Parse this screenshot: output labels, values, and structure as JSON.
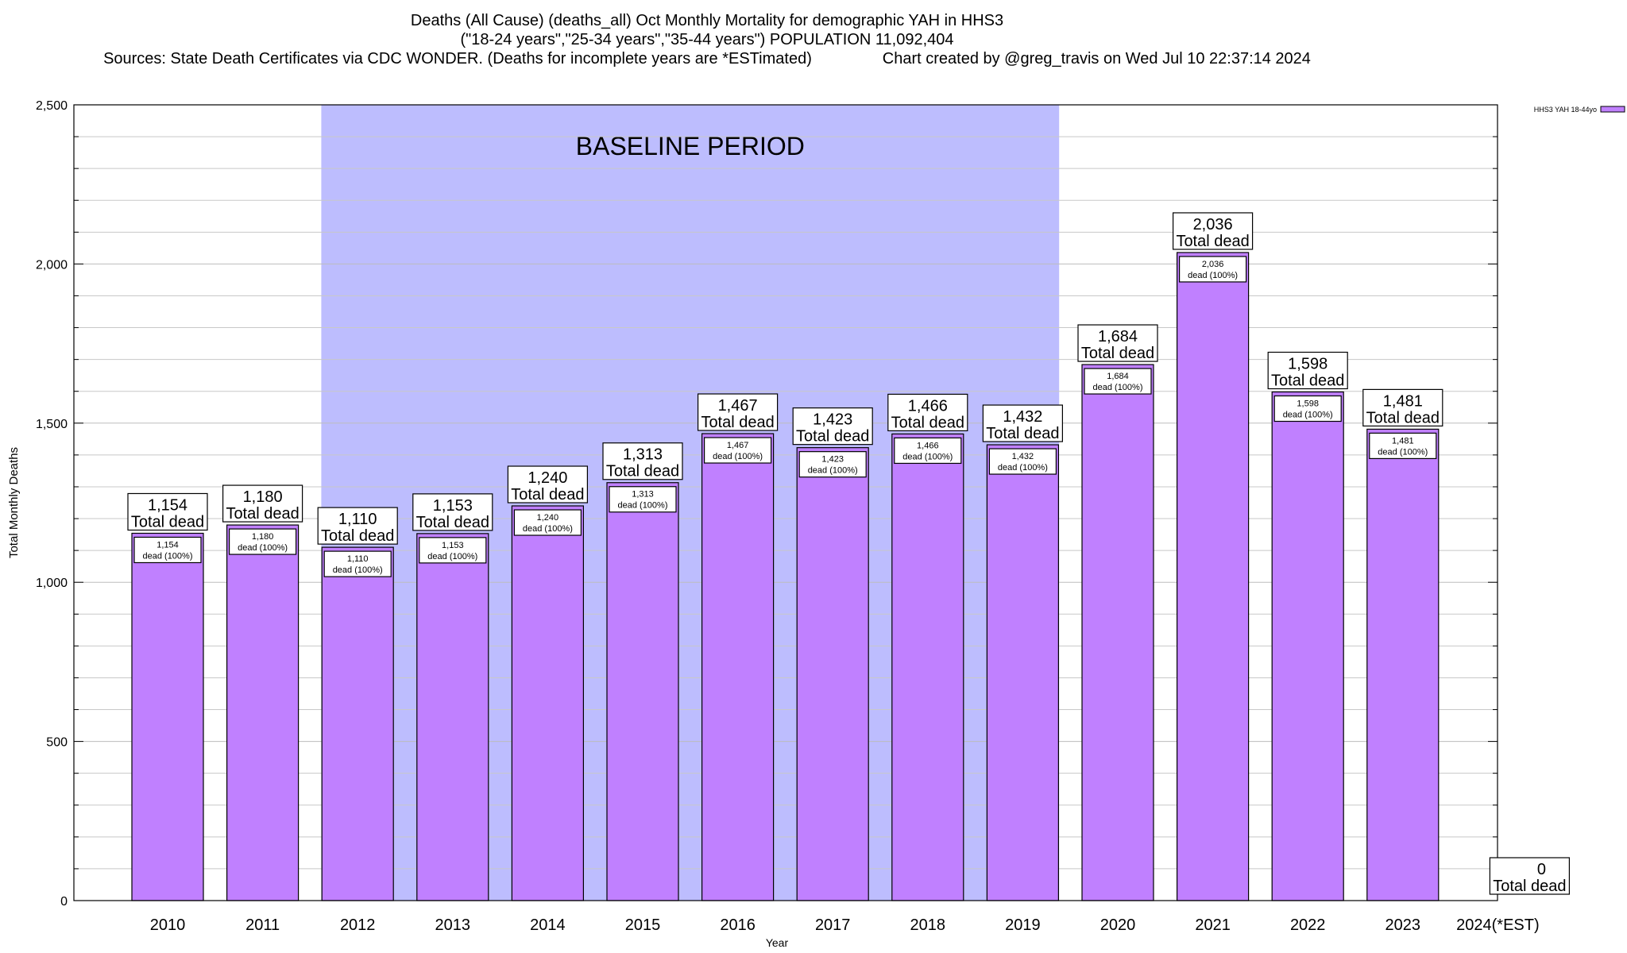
{
  "chart_data": {
    "type": "bar",
    "title": "Deaths (All Cause) (deaths_all) Oct Monthly Mortality for demographic YAH in HHS3",
    "subtitle": "(\"18-24 years\",\"25-34 years\",\"35-44 years\") POPULATION 11,092,404",
    "sources": "Sources: State Death Certificates via CDC WONDER. (Deaths for incomplete years are *ESTimated)",
    "credit": "Chart created by @greg_travis on Wed Jul 10 22:37:14 2024",
    "xlabel": "Year",
    "ylabel": "Total Monthly Deaths",
    "ylim": [
      0,
      2500
    ],
    "yticks": [
      0,
      500,
      1000,
      1500,
      2000,
      2500
    ],
    "ytick_labels": [
      "0",
      "500",
      "1,000",
      "1,500",
      "2,000",
      "2,500"
    ],
    "minor_step": 100,
    "categories": [
      "2010",
      "2011",
      "2012",
      "2013",
      "2014",
      "2015",
      "2016",
      "2017",
      "2018",
      "2019",
      "2020",
      "2021",
      "2022",
      "2023",
      "2024(*EST)"
    ],
    "series": [
      {
        "name": "HHS3 YAH 18-44yo",
        "color": "#c080ff",
        "values": [
          1154,
          1180,
          1110,
          1153,
          1240,
          1313,
          1467,
          1423,
          1466,
          1432,
          1684,
          2036,
          1598,
          1481,
          0
        ],
        "value_labels": [
          "1,154",
          "1,180",
          "1,110",
          "1,153",
          "1,240",
          "1,313",
          "1,467",
          "1,423",
          "1,466",
          "1,432",
          "1,684",
          "2,036",
          "1,598",
          "1,481",
          "0"
        ]
      }
    ],
    "top_label_suffix": "Total dead",
    "inner_label_suffix": "dead (100%)",
    "baseline": {
      "label": "BASELINE PERIOD",
      "from": "2012",
      "to": "2019",
      "color": "#bdbdfe"
    },
    "legend": {
      "label": "HHS3 YAH 18-44yo",
      "position": "top-right"
    },
    "colors": {
      "bar_fill": "#c080ff",
      "baseline_fill": "#bdbdfe",
      "grid": "#c8c8c8",
      "axis": "#000000"
    }
  }
}
